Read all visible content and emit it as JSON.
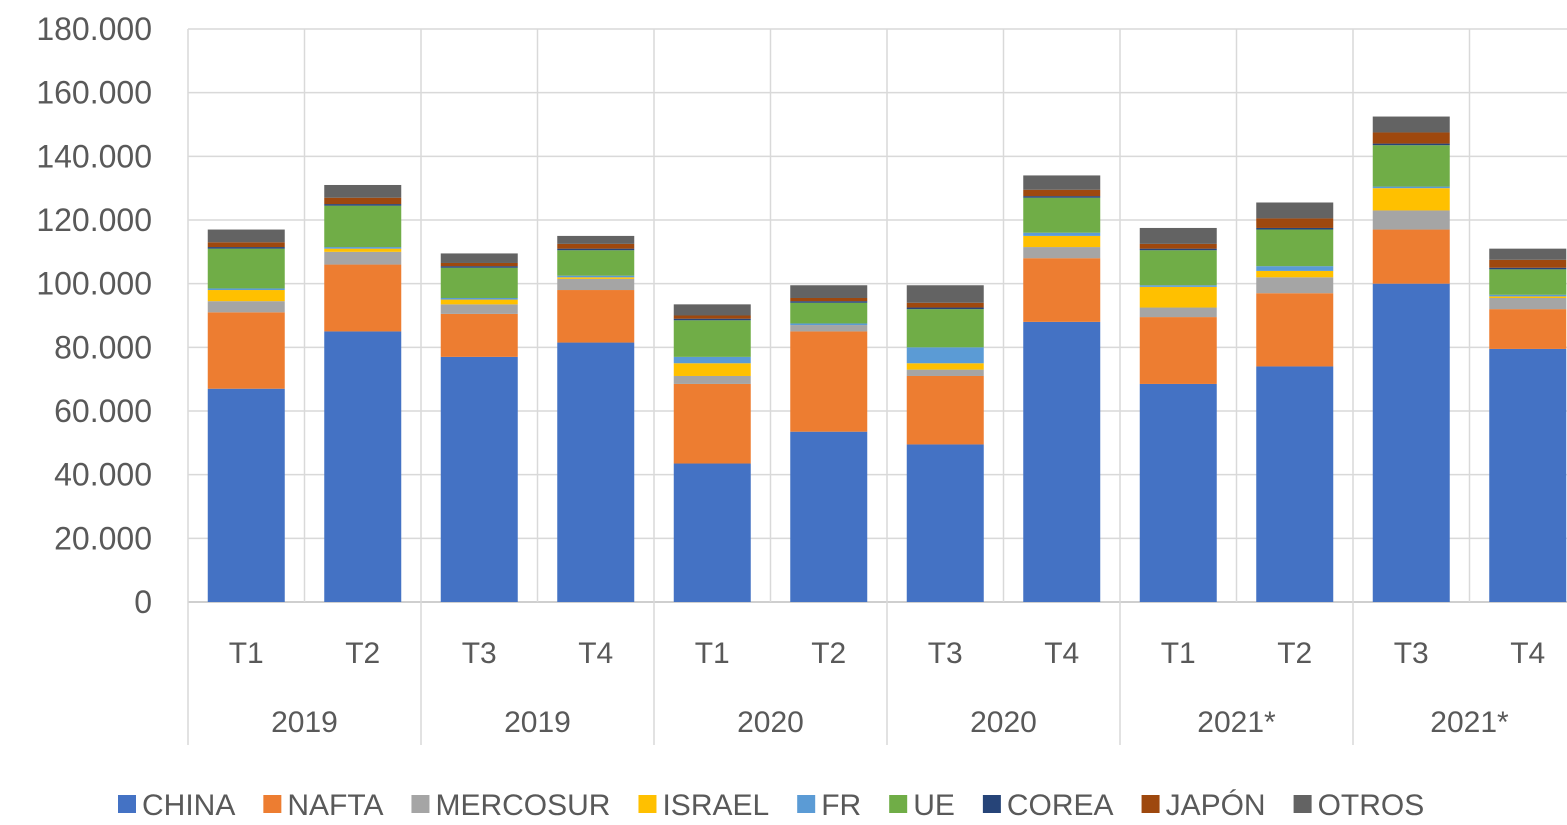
{
  "chart_data": {
    "type": "bar",
    "stacked": true,
    "title": "",
    "xlabel": "",
    "ylabel": "",
    "ylim": [
      0,
      180000
    ],
    "y_ticks": [
      0,
      20000,
      40000,
      60000,
      80000,
      100000,
      120000,
      140000,
      160000,
      180000
    ],
    "y_tick_labels": [
      "0",
      "20.000",
      "40.000",
      "60.000",
      "80.000",
      "100.000",
      "120.000",
      "140.000",
      "160.000",
      "180.000"
    ],
    "grid": true,
    "legend_position": "bottom",
    "categories": [
      "T1",
      "T2",
      "T3",
      "T4",
      "T1",
      "T2",
      "T3",
      "T4",
      "T1",
      "T2",
      "T3",
      "T4"
    ],
    "groups": [
      {
        "label": "2019",
        "span": 2
      },
      {
        "label": "2019",
        "span": 2
      },
      {
        "label": "2020",
        "span": 2
      },
      {
        "label": "2020",
        "span": 2
      },
      {
        "label": "2021*",
        "span": 2
      },
      {
        "label": "2021*",
        "span": 2
      }
    ],
    "series": [
      {
        "name": "CHINA",
        "color": "#4472C4",
        "values": [
          67000,
          85000,
          77000,
          81500,
          43500,
          53500,
          49500,
          88000,
          68500,
          74000,
          100000,
          79500
        ]
      },
      {
        "name": "NAFTA",
        "color": "#ED7D31",
        "values": [
          24000,
          21000,
          13500,
          16500,
          25000,
          31500,
          21500,
          20000,
          21000,
          23000,
          17000,
          12500
        ]
      },
      {
        "name": "MERCOSUR",
        "color": "#A5A5A5",
        "values": [
          3500,
          4000,
          3000,
          3500,
          2500,
          2000,
          2000,
          3500,
          3000,
          5000,
          6000,
          3500
        ]
      },
      {
        "name": "ISRAEL",
        "color": "#FFC000",
        "values": [
          3500,
          1000,
          1500,
          500,
          4000,
          0,
          2000,
          3500,
          6500,
          2000,
          7000,
          500
        ]
      },
      {
        "name": "FR",
        "color": "#5B9BD5",
        "values": [
          500,
          500,
          500,
          500,
          2000,
          500,
          5000,
          1000,
          500,
          1500,
          500,
          500
        ]
      },
      {
        "name": "UE",
        "color": "#70AD47",
        "values": [
          12500,
          13000,
          9500,
          8000,
          11500,
          6500,
          12000,
          11000,
          11000,
          11500,
          13000,
          8000
        ]
      },
      {
        "name": "COREA",
        "color": "#264478",
        "values": [
          500,
          500,
          500,
          500,
          500,
          500,
          500,
          500,
          500,
          500,
          500,
          500
        ]
      },
      {
        "name": "JAPÓN",
        "color": "#9E480E",
        "values": [
          1500,
          2000,
          1000,
          1500,
          1000,
          1000,
          1500,
          2000,
          1500,
          3000,
          3500,
          2500
        ]
      },
      {
        "name": "OTROS",
        "color": "#636363",
        "values": [
          4000,
          4000,
          3000,
          2500,
          3500,
          4000,
          5500,
          4500,
          5000,
          5000,
          5000,
          3500
        ]
      }
    ]
  }
}
